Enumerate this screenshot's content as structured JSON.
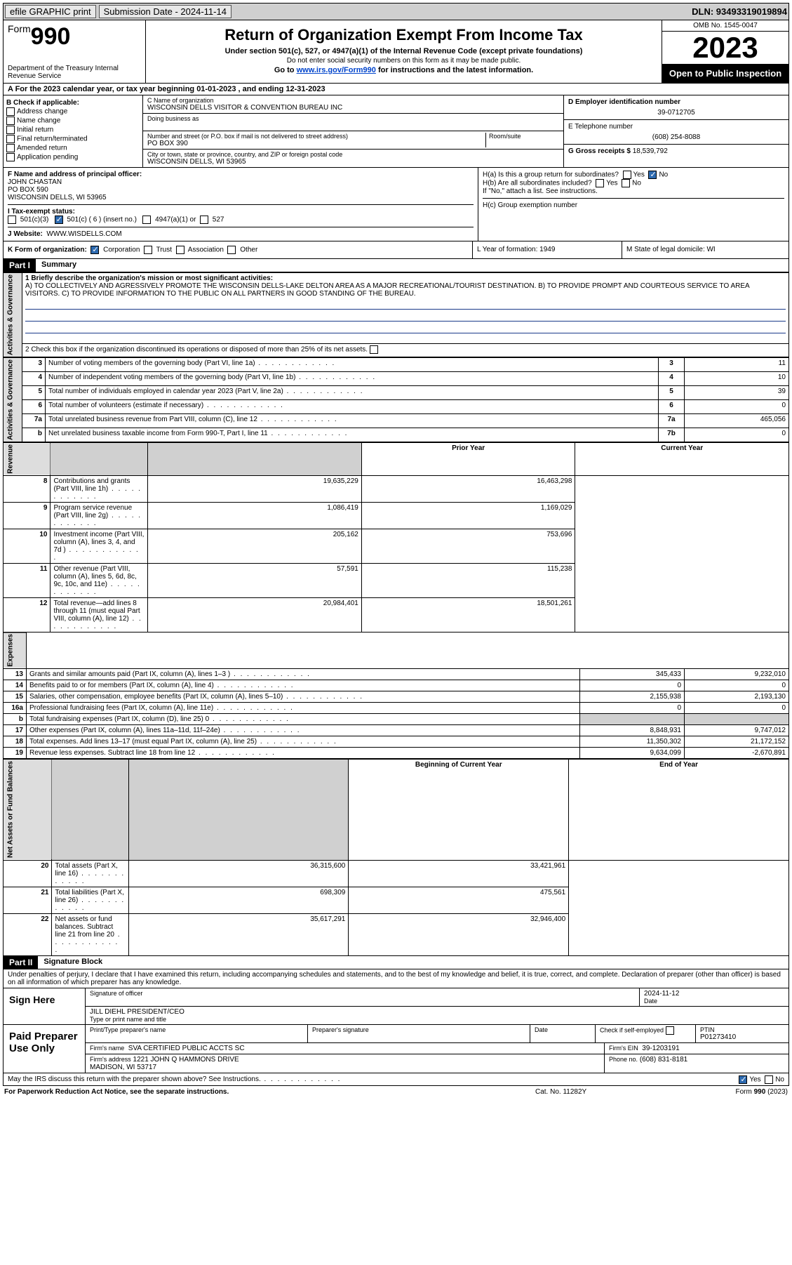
{
  "topbar": {
    "efile": "efile GRAPHIC print",
    "submission_label": "Submission Date - 2024-11-14",
    "dln_label": "DLN: 93493319019894"
  },
  "header": {
    "form_word": "Form",
    "form_number": "990",
    "dept": "Department of the Treasury Internal Revenue Service",
    "title": "Return of Organization Exempt From Income Tax",
    "sub1": "Under section 501(c), 527, or 4947(a)(1) of the Internal Revenue Code (except private foundations)",
    "sub2": "Do not enter social security numbers on this form as it may be made public.",
    "sub3_pre": "Go to ",
    "sub3_link": "www.irs.gov/Form990",
    "sub3_post": " for instructions and the latest information.",
    "omb": "OMB No. 1545-0047",
    "year": "2023",
    "open": "Open to Public Inspection"
  },
  "line_A": "A For the 2023 calendar year, or tax year beginning 01-01-2023   , and ending 12-31-2023",
  "B": {
    "header": "B Check if applicable:",
    "items": [
      "Address change",
      "Name change",
      "Initial return",
      "Final return/terminated",
      "Amended return",
      "Application pending"
    ]
  },
  "C": {
    "name_label": "C Name of organization",
    "name": "WISCONSIN DELLS VISITOR & CONVENTION BUREAU INC",
    "dba_label": "Doing business as",
    "street_label": "Number and street (or P.O. box if mail is not delivered to street address)",
    "room_label": "Room/suite",
    "street": "PO BOX 390",
    "city_label": "City or town, state or province, country, and ZIP or foreign postal code",
    "city": "WISCONSIN DELLS, WI  53965"
  },
  "D": {
    "label": "D Employer identification number",
    "value": "39-0712705"
  },
  "E": {
    "label": "E Telephone number",
    "value": "(608) 254-8088"
  },
  "G": {
    "label": "G Gross receipts $",
    "value": "18,539,792"
  },
  "F": {
    "label": "F  Name and address of principal officer:",
    "name": "JOHN CHASTAN",
    "addr1": "PO BOX 590",
    "addr2": "WISCONSIN DELLS, WI  53965"
  },
  "H": {
    "a": "H(a)  Is this a group return for subordinates?",
    "a_yes": "Yes",
    "a_no": "No",
    "b": "H(b)  Are all subordinates included?",
    "b_note": "If \"No,\" attach a list. See instructions.",
    "c": "H(c)  Group exemption number"
  },
  "I": {
    "label": "I    Tax-exempt status:",
    "opt1": "501(c)(3)",
    "opt2": "501(c) ( 6 ) (insert no.)",
    "opt3": "4947(a)(1) or",
    "opt4": "527"
  },
  "J": {
    "label": "J    Website:",
    "value": "WWW.WISDELLS.COM"
  },
  "K": {
    "label": "K Form of organization:",
    "opts": [
      "Corporation",
      "Trust",
      "Association",
      "Other"
    ],
    "L": "L Year of formation: 1949",
    "M": "M State of legal domicile: WI"
  },
  "part1": {
    "label": "Part I",
    "title": "Summary"
  },
  "summary": {
    "q1_label": "1   Briefly describe the organization's mission or most significant activities:",
    "q1_text": "A) TO COLLECTIVELY AND AGRESSIVELY PROMOTE THE WISCONSIN DELLS-LAKE DELTON AREA AS A MAJOR RECREATIONAL/TOURIST DESTINATION. B) TO PROVIDE PROMPT AND COURTEOUS SERVICE TO AREA VISITORS. C) TO PROVIDE INFORMATION TO THE PUBLIC ON ALL PARTNERS IN GOOD STANDING OF THE BUREAU.",
    "q2": "2    Check this box      if the organization discontinued its operations or disposed of more than 25% of its net assets.",
    "rows_gov": [
      {
        "n": "3",
        "t": "Number of voting members of the governing body (Part VI, line 1a)",
        "box": "3",
        "v": "11"
      },
      {
        "n": "4",
        "t": "Number of independent voting members of the governing body (Part VI, line 1b)",
        "box": "4",
        "v": "10"
      },
      {
        "n": "5",
        "t": "Total number of individuals employed in calendar year 2023 (Part V, line 2a)",
        "box": "5",
        "v": "39"
      },
      {
        "n": "6",
        "t": "Total number of volunteers (estimate if necessary)",
        "box": "6",
        "v": "0"
      },
      {
        "n": "7a",
        "t": "Total unrelated business revenue from Part VIII, column (C), line 12",
        "box": "7a",
        "v": "465,056"
      },
      {
        "n": "b",
        "t": "Net unrelated business taxable income from Form 990-T, Part I, line 11",
        "box": "7b",
        "v": "0"
      }
    ],
    "col_prior": "Prior Year",
    "col_current": "Current Year",
    "rows_rev": [
      {
        "n": "8",
        "t": "Contributions and grants (Part VIII, line 1h)",
        "p": "19,635,229",
        "c": "16,463,298"
      },
      {
        "n": "9",
        "t": "Program service revenue (Part VIII, line 2g)",
        "p": "1,086,419",
        "c": "1,169,029"
      },
      {
        "n": "10",
        "t": "Investment income (Part VIII, column (A), lines 3, 4, and 7d )",
        "p": "205,162",
        "c": "753,696"
      },
      {
        "n": "11",
        "t": "Other revenue (Part VIII, column (A), lines 5, 6d, 8c, 9c, 10c, and 11e)",
        "p": "57,591",
        "c": "115,238"
      },
      {
        "n": "12",
        "t": "Total revenue—add lines 8 through 11 (must equal Part VIII, column (A), line 12)",
        "p": "20,984,401",
        "c": "18,501,261"
      }
    ],
    "rows_exp": [
      {
        "n": "13",
        "t": "Grants and similar amounts paid (Part IX, column (A), lines 1–3 )",
        "p": "345,433",
        "c": "9,232,010"
      },
      {
        "n": "14",
        "t": "Benefits paid to or for members (Part IX, column (A), line 4)",
        "p": "0",
        "c": "0"
      },
      {
        "n": "15",
        "t": "Salaries, other compensation, employee benefits (Part IX, column (A), lines 5–10)",
        "p": "2,155,938",
        "c": "2,193,130"
      },
      {
        "n": "16a",
        "t": "Professional fundraising fees (Part IX, column (A), line 11e)",
        "p": "0",
        "c": "0"
      },
      {
        "n": "b",
        "t": "Total fundraising expenses (Part IX, column (D), line 25) 0",
        "p": "",
        "c": "",
        "grey": true
      },
      {
        "n": "17",
        "t": "Other expenses (Part IX, column (A), lines 11a–11d, 11f–24e)",
        "p": "8,848,931",
        "c": "9,747,012"
      },
      {
        "n": "18",
        "t": "Total expenses. Add lines 13–17 (must equal Part IX, column (A), line 25)",
        "p": "11,350,302",
        "c": "21,172,152"
      },
      {
        "n": "19",
        "t": "Revenue less expenses. Subtract line 18 from line 12",
        "p": "9,634,099",
        "c": "-2,670,891"
      }
    ],
    "col_begin": "Beginning of Current Year",
    "col_end": "End of Year",
    "rows_net": [
      {
        "n": "20",
        "t": "Total assets (Part X, line 16)",
        "p": "36,315,600",
        "c": "33,421,961"
      },
      {
        "n": "21",
        "t": "Total liabilities (Part X, line 26)",
        "p": "698,309",
        "c": "475,561"
      },
      {
        "n": "22",
        "t": "Net assets or fund balances. Subtract line 21 from line 20",
        "p": "35,617,291",
        "c": "32,946,400"
      }
    ],
    "vlabels": {
      "gov": "Activities & Governance",
      "rev": "Revenue",
      "exp": "Expenses",
      "net": "Net Assets or Fund Balances"
    }
  },
  "part2": {
    "label": "Part II",
    "title": "Signature Block"
  },
  "perjury": "Under penalties of perjury, I declare that I have examined this return, including accompanying schedules and statements, and to the best of my knowledge and belief, it is true, correct, and complete. Declaration of preparer (other than officer) is based on all information of which preparer has any knowledge.",
  "sign": {
    "here": "Sign Here",
    "sig_officer": "Signature of officer",
    "date": "Date",
    "date_val": "2024-11-12",
    "officer": "JILL DIEHL  PRESIDENT/CEO",
    "type_label": "Type or print name and title"
  },
  "paid": {
    "label": "Paid Preparer Use Only",
    "print_label": "Print/Type preparer's name",
    "sig_label": "Preparer's signature",
    "date_label": "Date",
    "check_label": "Check         if self-employed",
    "ptin_label": "PTIN",
    "ptin": "P01273410",
    "firm_name_label": "Firm's name",
    "firm_name": "SVA CERTIFIED PUBLIC ACCTS SC",
    "firm_ein_label": "Firm's EIN",
    "firm_ein": "39-1203191",
    "firm_addr_label": "Firm's address",
    "firm_addr": "1221 JOHN Q HAMMONS DRIVE\nMADISON, WI  53717",
    "phone_label": "Phone no.",
    "phone": "(608) 831-8181"
  },
  "discuss": "May the IRS discuss this return with the preparer shown above? See Instructions.",
  "discuss_yes": "Yes",
  "discuss_no": "No",
  "footer": {
    "f1": "For Paperwork Reduction Act Notice, see the separate instructions.",
    "f2": "Cat. No. 11282Y",
    "f3": "Form 990 (2023)"
  }
}
